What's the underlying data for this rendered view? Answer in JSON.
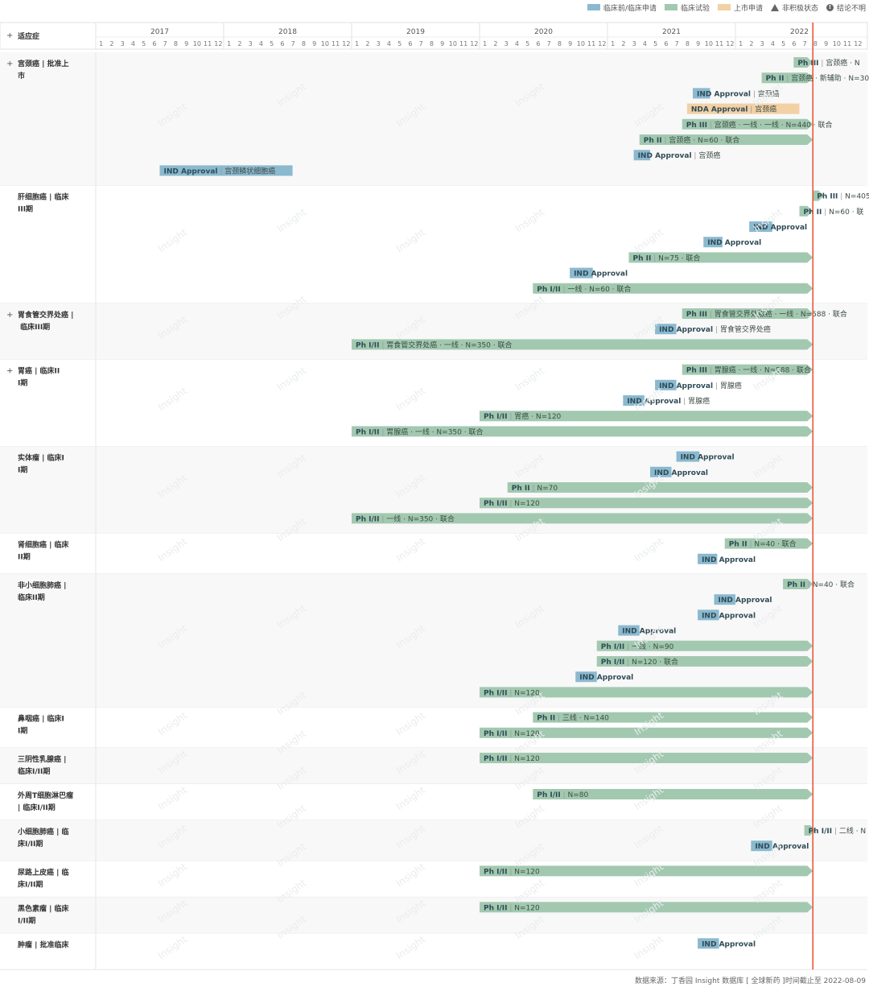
{
  "legend": [
    {
      "label": "临床前/临床申请",
      "color": "#8bb9cf",
      "kind": "swatch",
      "icon": "blue-swatch-icon"
    },
    {
      "label": "临床试验",
      "color": "#a2c9b0",
      "kind": "swatch",
      "icon": "green-swatch-icon"
    },
    {
      "label": "上市申请",
      "color": "#f2d1a5",
      "kind": "swatch",
      "icon": "orange-swatch-icon"
    },
    {
      "label": "非积极状态",
      "color": "#666666",
      "kind": "triangle",
      "icon": "triangle-icon"
    },
    {
      "label": "结论不明",
      "color": "#666666",
      "kind": "dot",
      "icon": "exclamation-circle-icon"
    }
  ],
  "header_label": "适应症",
  "footer": "数据来源：丁香园 Insight 数据库 [ 全球新药 ]时间截止至 2022-08-09",
  "watermark": "Insight",
  "colors": {
    "ind": "#8bb9cf",
    "trial": "#a2c9b0",
    "nda": "#f2d1a5",
    "today": "#e8502e",
    "grid": "#e6e6e6"
  },
  "chart_data": {
    "type": "gantt",
    "years": [
      "2017",
      "2018",
      "2019",
      "2020",
      "2021",
      "2022"
    ],
    "months": [
      "1",
      "2",
      "3",
      "4",
      "5",
      "6",
      "7",
      "8",
      "9",
      "10",
      "11",
      "12"
    ],
    "today": "2022-08-09",
    "indications": [
      {
        "name": "宫颈癌 | 批准上市",
        "expand": "+",
        "bars": [
          {
            "type": "trial",
            "phase": "Ph III",
            "detail": "宫颈癌 · N",
            "start": "2022-06-15",
            "end": "2022-08-09",
            "arrow": true
          },
          {
            "type": "trial",
            "phase": "Ph II",
            "detail": "宫颈癌 · 新辅助 · N=30",
            "start": "2022-03-15",
            "end": "2022-08-09",
            "arrow": true
          },
          {
            "type": "ind",
            "phase": "IND Approval",
            "detail": "宫颈癌",
            "start": "2021-09-01",
            "end": "2021-10-20"
          },
          {
            "type": "nda",
            "phase": "NDA Approval",
            "detail": "宫颈癌",
            "start": "2021-08-15",
            "end": "2022-07-01"
          },
          {
            "type": "trial",
            "phase": "Ph III",
            "detail": "宫颈癌 · 一线 · 一线 · N=440 · 联合",
            "start": "2021-08-01",
            "end": "2022-08-09",
            "arrow": true
          },
          {
            "type": "trial",
            "phase": "Ph II",
            "detail": "宫颈癌 · N=60 · 联合",
            "start": "2021-04-01",
            "end": "2022-08-09",
            "arrow": true
          },
          {
            "type": "ind",
            "phase": "IND Approval",
            "detail": "宫颈癌",
            "start": "2021-03-15",
            "end": "2021-05-01"
          },
          {
            "type": "ind",
            "phase": "IND Approval",
            "detail": "宫颈鳞状细胞癌",
            "start": "2017-07-01",
            "end": "2018-07-15"
          }
        ]
      },
      {
        "name": "肝细胞癌 | 临床III期",
        "expand": "",
        "bars": [
          {
            "type": "trial",
            "phase": "Ph III",
            "detail": "N=405",
            "start": "2022-08-09",
            "end": "2022-08-09",
            "arrow": true
          },
          {
            "type": "trial",
            "phase": "Ph II",
            "detail": "N=60 · 联",
            "start": "2022-07-01",
            "end": "2022-08-09",
            "arrow": true
          },
          {
            "type": "ind",
            "phase": "IND Approval",
            "detail": "",
            "start": "2022-02-10",
            "end": "2022-04-15"
          },
          {
            "type": "ind",
            "phase": "IND Approval",
            "detail": "",
            "start": "2021-10-01",
            "end": "2021-11-25"
          },
          {
            "type": "trial",
            "phase": "Ph II",
            "detail": "N=75 · 联合",
            "start": "2021-03-01",
            "end": "2022-08-09",
            "arrow": true
          },
          {
            "type": "ind",
            "phase": "IND Approval",
            "detail": "",
            "start": "2020-09-15",
            "end": "2020-11-20"
          },
          {
            "type": "trial",
            "phase": "Ph I/II",
            "detail": "一线 · N=60 · 联合",
            "start": "2020-06-01",
            "end": "2022-08-09",
            "arrow": true
          }
        ]
      },
      {
        "name": "胃食管交界处癌 | 临床III期",
        "expand": "+",
        "bars": [
          {
            "type": "trial",
            "phase": "Ph III",
            "detail": "胃食管交界处腺癌 · 一线 · N=588 · 联合",
            "start": "2021-08-01",
            "end": "2022-08-09",
            "arrow": true
          },
          {
            "type": "ind",
            "phase": "IND Approval",
            "detail": "胃食管交界处癌",
            "start": "2021-05-15",
            "end": "2021-07-15"
          },
          {
            "type": "trial",
            "phase": "Ph I/II",
            "detail": "胃食管交界处癌 · 一线 · N=350 · 联合",
            "start": "2019-01-01",
            "end": "2022-08-09",
            "arrow": true
          }
        ]
      },
      {
        "name": "胃癌 | 临床III期",
        "expand": "+",
        "bars": [
          {
            "type": "trial",
            "phase": "Ph III",
            "detail": "胃腺癌 · 一线 · N=588 · 联合",
            "start": "2021-08-01",
            "end": "2022-08-09",
            "arrow": true
          },
          {
            "type": "ind",
            "phase": "IND Approval",
            "detail": "胃腺癌",
            "start": "2021-05-15",
            "end": "2021-07-15"
          },
          {
            "type": "ind",
            "phase": "IND Approval",
            "detail": "胃腺癌",
            "start": "2021-02-15",
            "end": "2021-04-15"
          },
          {
            "type": "trial",
            "phase": "Ph I/II",
            "detail": "胃癌 · N=120",
            "start": "2020-01-01",
            "end": "2022-08-09",
            "arrow": true
          },
          {
            "type": "trial",
            "phase": "Ph I/II",
            "detail": "胃腺癌 · 一线 · N=350 · 联合",
            "start": "2019-01-01",
            "end": "2022-08-09",
            "arrow": true
          }
        ]
      },
      {
        "name": "实体瘤 | 临床II期",
        "expand": "",
        "bars": [
          {
            "type": "ind",
            "phase": "IND Approval",
            "detail": "",
            "start": "2021-07-15",
            "end": "2021-09-20"
          },
          {
            "type": "ind",
            "phase": "IND Approval",
            "detail": "",
            "start": "2021-05-01",
            "end": "2021-07-01"
          },
          {
            "type": "trial",
            "phase": "Ph II",
            "detail": "N=70",
            "start": "2020-03-20",
            "end": "2022-08-09",
            "arrow": true
          },
          {
            "type": "trial",
            "phase": "Ph I/II",
            "detail": "N=120",
            "start": "2020-01-01",
            "end": "2022-08-09",
            "arrow": true
          },
          {
            "type": "trial",
            "phase": "Ph I/II",
            "detail": "一线 · N=350 · 联合",
            "start": "2019-01-01",
            "end": "2022-08-09",
            "arrow": true
          }
        ]
      },
      {
        "name": "肾细胞癌 | 临床II期",
        "expand": "",
        "bars": [
          {
            "type": "trial",
            "phase": "Ph II",
            "detail": "N=40 · 联合",
            "start": "2021-12-01",
            "end": "2022-08-09",
            "arrow": true
          },
          {
            "type": "ind",
            "phase": "IND Approval",
            "detail": "",
            "start": "2021-09-15",
            "end": "2021-11-10"
          }
        ]
      },
      {
        "name": "非小细胞肺癌 | 临床II期",
        "expand": "",
        "bars": [
          {
            "type": "trial",
            "phase": "Ph II",
            "detail": "N=40 · 联合",
            "start": "2022-05-15",
            "end": "2022-08-09",
            "arrow": true
          },
          {
            "type": "ind",
            "phase": "IND Approval",
            "detail": "",
            "start": "2021-11-01",
            "end": "2022-01-01"
          },
          {
            "type": "ind",
            "phase": "IND Approval",
            "detail": "",
            "start": "2021-09-15",
            "end": "2021-11-15"
          },
          {
            "type": "ind",
            "phase": "IND Approval",
            "detail": "",
            "start": "2021-02-01",
            "end": "2021-04-01"
          },
          {
            "type": "trial",
            "phase": "Ph I/II",
            "detail": "一线 · N=90",
            "start": "2020-12-01",
            "end": "2022-08-09",
            "arrow": true
          },
          {
            "type": "trial",
            "phase": "Ph I/II",
            "detail": "N=120 · 联合",
            "start": "2020-12-01",
            "end": "2022-08-09",
            "arrow": true
          },
          {
            "type": "ind",
            "phase": "IND Approval",
            "detail": "",
            "start": "2020-10-01",
            "end": "2020-12-01"
          },
          {
            "type": "trial",
            "phase": "Ph I/II",
            "detail": "N=120",
            "start": "2020-01-01",
            "end": "2022-08-09",
            "arrow": true
          }
        ]
      },
      {
        "name": "鼻咽癌 | 临床II期",
        "expand": "",
        "bars": [
          {
            "type": "trial",
            "phase": "Ph II",
            "detail": "三线 · N=140",
            "start": "2020-06-01",
            "end": "2022-08-09",
            "arrow": true
          },
          {
            "type": "trial",
            "phase": "Ph I/II",
            "detail": "N=120",
            "start": "2020-01-01",
            "end": "2022-08-09",
            "arrow": true
          }
        ]
      },
      {
        "name": "三阴性乳腺癌 | 临床I/II期",
        "expand": "",
        "bars": [
          {
            "type": "trial",
            "phase": "Ph I/II",
            "detail": "N=120",
            "start": "2020-01-01",
            "end": "2022-08-09",
            "arrow": true
          }
        ]
      },
      {
        "name": "外周T细胞淋巴瘤 | 临床I/II期",
        "expand": "",
        "bars": [
          {
            "type": "trial",
            "phase": "Ph I/II",
            "detail": "N=80",
            "start": "2020-06-01",
            "end": "2022-08-09",
            "arrow": true
          }
        ]
      },
      {
        "name": "小细胞肺癌 | 临床I/II期",
        "expand": "",
        "bars": [
          {
            "type": "trial",
            "phase": "Ph I/II",
            "detail": "二线 · N",
            "start": "2022-07-15",
            "end": "2022-08-09",
            "arrow": true
          },
          {
            "type": "ind",
            "phase": "IND Approval",
            "detail": "",
            "start": "2022-02-15",
            "end": "2022-04-15"
          }
        ]
      },
      {
        "name": "尿路上皮癌 | 临床I/II期",
        "expand": "",
        "bars": [
          {
            "type": "trial",
            "phase": "Ph I/II",
            "detail": "N=120",
            "start": "2020-01-01",
            "end": "2022-08-09",
            "arrow": true
          }
        ]
      },
      {
        "name": "黑色素瘤 | 临床I/II期",
        "expand": "",
        "bars": [
          {
            "type": "trial",
            "phase": "Ph I/II",
            "detail": "N=120",
            "start": "2020-01-01",
            "end": "2022-08-09",
            "arrow": true
          }
        ]
      },
      {
        "name": "肿瘤 | 批准临床",
        "expand": "",
        "bars": [
          {
            "type": "ind",
            "phase": "IND Approval",
            "detail": "",
            "start": "2021-09-15",
            "end": "2021-11-15"
          }
        ]
      }
    ]
  }
}
